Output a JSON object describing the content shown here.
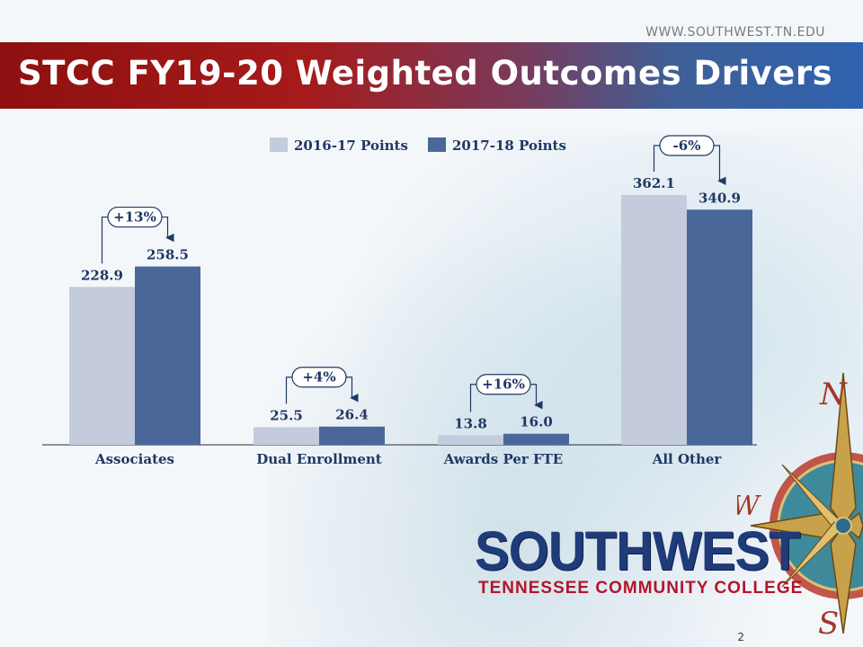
{
  "header": {
    "url": "WWW.SOUTHWEST.TN.EDU",
    "title": "STCC FY19-20 Weighted Outcomes Drivers"
  },
  "colors": {
    "series_2016": "#c3cbdc",
    "series_2017": "#4a6799",
    "text_dark": "#1f3864",
    "banner_red": "#a61a1a",
    "banner_blue": "#2e62b0"
  },
  "chart_data": {
    "type": "bar",
    "title": "",
    "categories": [
      "Associates",
      "Dual Enrollment",
      "Awards Per FTE",
      "All Other"
    ],
    "series": [
      {
        "name": "2016-17 Points",
        "values": [
          228.9,
          25.5,
          13.8,
          362.1
        ],
        "labels": [
          "228.9",
          "25.5",
          "13.8",
          "362.1"
        ]
      },
      {
        "name": "2017-18 Points",
        "values": [
          258.5,
          26.4,
          16.0,
          340.9
        ],
        "labels": [
          "258.5",
          "26.4",
          "16.0",
          "340.9"
        ]
      }
    ],
    "changes": [
      "+13%",
      "+4%",
      "+16%",
      "-6%"
    ],
    "ylim": [
      0,
      400
    ],
    "legend": "top-center",
    "grid": false
  },
  "logo": {
    "name": "SOUTHWEST",
    "subtitle": "TENNESSEE COMMUNITY COLLEGE",
    "compass_letters": [
      "N",
      "W",
      "S"
    ]
  },
  "footer": {
    "page_number": "2"
  }
}
